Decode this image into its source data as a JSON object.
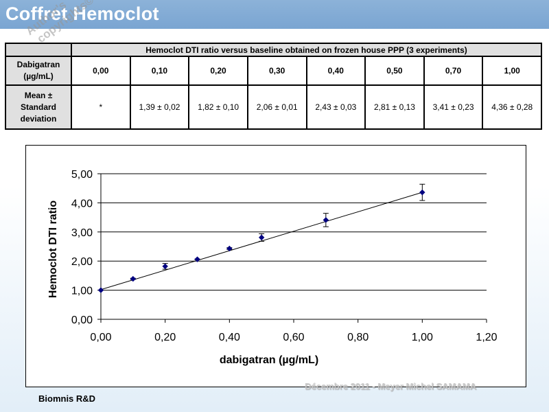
{
  "header": {
    "title": "Coffret Hemoclot",
    "watermark_line1": "Author's",
    "watermark_line2": "copyrights©"
  },
  "table": {
    "caption": "Hemoclot DTI  ratio versus baseline obtained on frozen house PPP (3 experiments)",
    "dose_label_line1": "Dabigatran",
    "dose_label_line2": "(µg/mL)",
    "mean_label_line1": "Mean ±",
    "mean_label_line2": "Standard",
    "mean_label_line3": "deviation",
    "doses": [
      "0,00",
      "0,10",
      "0,20",
      "0,30",
      "0,40",
      "0,50",
      "0,70",
      "1,00"
    ],
    "means": [
      "*",
      "1,39 ± 0,02",
      "1,82 ± 0,10",
      "2,06 ± 0,01",
      "2,43 ± 0,03",
      "2,81 ± 0,13",
      "3,41 ± 0,23",
      "4,36 ± 0,28"
    ]
  },
  "chart_data": {
    "type": "scatter",
    "title": "",
    "xlabel": "dabigatran (µg/mL)",
    "ylabel": "Hemoclot DTI ratio",
    "xlim": [
      0,
      1.2
    ],
    "ylim": [
      0,
      5
    ],
    "x_ticks": [
      "0,00",
      "0,20",
      "0,40",
      "0,60",
      "0,80",
      "1,00",
      "1,20"
    ],
    "y_ticks": [
      "0,00",
      "1,00",
      "2,00",
      "3,00",
      "4,00",
      "5,00"
    ],
    "x_tick_values": [
      0,
      0.2,
      0.4,
      0.6,
      0.8,
      1.0,
      1.2
    ],
    "y_tick_values": [
      0,
      1,
      2,
      3,
      4,
      5
    ],
    "grid": "horizontal",
    "marker_color": "#000080",
    "series": [
      {
        "name": "Hemoclot DTI ratio",
        "x": [
          0.0,
          0.1,
          0.2,
          0.3,
          0.4,
          0.5,
          0.7,
          1.0
        ],
        "y": [
          1.0,
          1.39,
          1.82,
          2.06,
          2.43,
          2.81,
          3.41,
          4.36
        ],
        "error": [
          0,
          0.02,
          0.1,
          0.01,
          0.03,
          0.13,
          0.23,
          0.28
        ]
      }
    ],
    "trendline": {
      "type": "linear",
      "x": [
        0.0,
        1.0
      ],
      "y": [
        1.02,
        4.36
      ]
    }
  },
  "footer": {
    "org": "Biomnis R&D",
    "credit": "Décembre 2011 - Meyer Michel SAMAMA"
  }
}
